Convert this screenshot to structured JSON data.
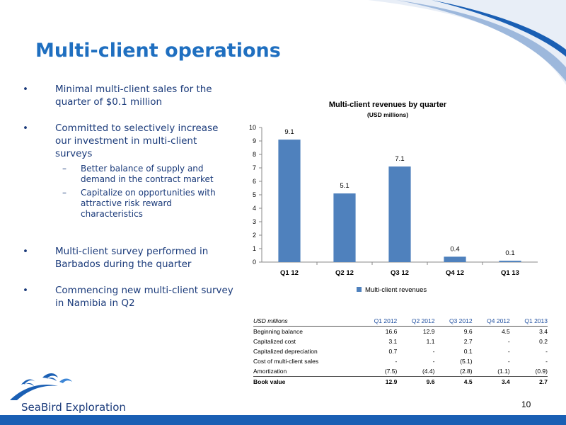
{
  "colors": {
    "title": "#1f6fc0",
    "bullet_text": "#1a3a7a",
    "bar": "#4f81bd",
    "accent": "#1a5fb4"
  },
  "slide": {
    "title": "Multi-client operations",
    "page_number": "10",
    "logo_text": "SeaBird Exploration"
  },
  "bullets": [
    {
      "text": "Minimal multi-client sales for the quarter of $0.1 million"
    },
    {
      "text": "Committed to selectively increase our investment in multi-client surveys",
      "subs": [
        "Better balance of supply and demand in the contract market",
        "Capitalize on opportunities with attractive risk reward characteristics"
      ]
    },
    {
      "text": "Multi-client  survey performed in Barbados during the quarter"
    },
    {
      "text": "Commencing new multi-client survey in Namibia in Q2"
    }
  ],
  "bullet_symbol": "•",
  "sub_symbol": "–",
  "chart_data": {
    "type": "bar",
    "title": "Multi-client revenues by quarter",
    "subtitle": "(USD millions)",
    "categories": [
      "Q1 12",
      "Q2 12",
      "Q3 12",
      "Q4 12",
      "Q1 13"
    ],
    "series": [
      {
        "name": "Multi-client revenues",
        "values": [
          9.1,
          5.1,
          7.1,
          0.4,
          0.1
        ]
      }
    ],
    "ylim": [
      0,
      10
    ],
    "yticks": [
      0,
      1,
      2,
      3,
      4,
      5,
      6,
      7,
      8,
      9,
      10
    ],
    "grid": false,
    "legend": "bottom",
    "xlabel": "",
    "ylabel": ""
  },
  "table": {
    "headers": [
      "USD millions",
      "Q1 2012",
      "Q2 2012",
      "Q3 2012",
      "Q4 2012",
      "Q1 2013"
    ],
    "rows": [
      [
        "Beginning balance",
        "16.6",
        "12.9",
        "9.6",
        "4.5",
        "3.4"
      ],
      [
        "Capitalized cost",
        "3.1",
        "1.1",
        "2.7",
        "-",
        "0.2"
      ],
      [
        "Capitalized depreciation",
        "0.7",
        "-",
        "0.1",
        "-",
        "-"
      ],
      [
        "Cost of multi-client sales",
        "-",
        "-",
        "(5.1)",
        "-",
        "-"
      ],
      [
        "Amortization",
        "(7.5)",
        "(4.4)",
        "(2.8)",
        "(1.1)",
        "(0.9)"
      ]
    ],
    "total": [
      "Book value",
      "12.9",
      "9.6",
      "4.5",
      "3.4",
      "2.7"
    ]
  }
}
